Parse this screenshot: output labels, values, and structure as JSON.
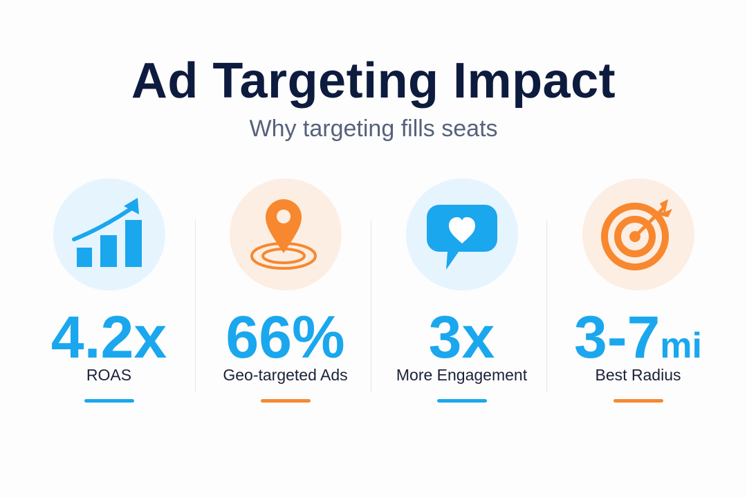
{
  "header": {
    "title": "Ad Targeting Impact",
    "subtitle": "Why targeting fills seats"
  },
  "colors": {
    "accent_blue": "#1aa7ee",
    "accent_orange": "#f7882f",
    "title_navy": "#0d1b3e"
  },
  "stats": [
    {
      "icon": "bar-chart-trend-icon",
      "value": "4.2x",
      "unit": "",
      "label": "ROAS",
      "accent": "blue"
    },
    {
      "icon": "location-pin-icon",
      "value": "66%",
      "unit": "",
      "label": "Geo-targeted Ads",
      "accent": "orange"
    },
    {
      "icon": "chat-heart-icon",
      "value": "3x",
      "unit": "",
      "label": "More Engagement",
      "accent": "blue"
    },
    {
      "icon": "target-arrow-icon",
      "value": "3-7",
      "unit": "mi",
      "label": "Best Radius",
      "accent": "orange"
    }
  ]
}
